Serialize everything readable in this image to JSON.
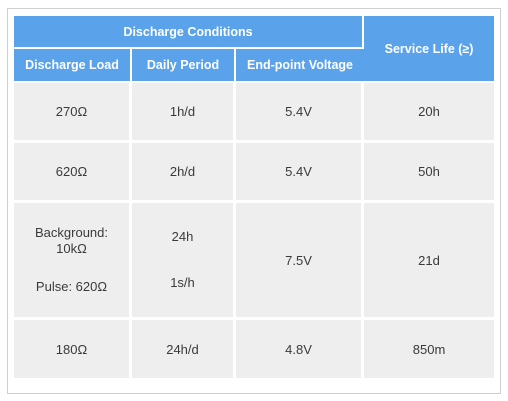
{
  "header": {
    "group_label": "Discharge Conditions",
    "service_life_label": "Service Life (≥)",
    "columns": [
      "Discharge Load",
      "Daily Period",
      "End-point Voltage"
    ]
  },
  "rows": [
    {
      "load": "270Ω",
      "period": "1h/d",
      "voltage": "5.4V",
      "life": "20h"
    },
    {
      "load": "620Ω",
      "period": "2h/d",
      "voltage": "5.4V",
      "life": "50h"
    },
    {
      "load_lines": [
        "Background:",
        "10kΩ",
        "Pulse: 620Ω"
      ],
      "period_lines": [
        "24h",
        "1s/h"
      ],
      "voltage": "7.5V",
      "life": "21d"
    },
    {
      "load": "180Ω",
      "period": "24h/d",
      "voltage": "4.8V",
      "life": "850m"
    }
  ]
}
